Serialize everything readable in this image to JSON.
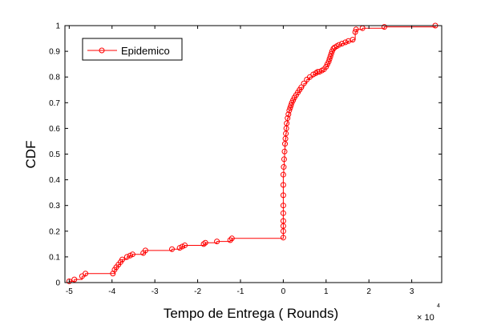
{
  "chart_data": {
    "type": "line",
    "title": "",
    "xlabel": "Tempo de Entrega ( Rounds)",
    "ylabel": "CDF",
    "x_exponent_base": "× 10",
    "x_exponent_power": "4",
    "xlim": [
      -5.1,
      3.7
    ],
    "ylim": [
      0,
      1
    ],
    "x_ticks": [
      "-5",
      "-4",
      "-3",
      "-2",
      "-1",
      "0",
      "1",
      "2",
      "3"
    ],
    "y_ticks": [
      "0",
      "0.1",
      "0.2",
      "0.3",
      "0.4",
      "0.5",
      "0.6",
      "0.7",
      "0.8",
      "0.9",
      "1"
    ],
    "grid": false,
    "legend_position": "top-left",
    "series": [
      {
        "name": "Epidemico",
        "color": "#ff0000",
        "marker": "circle",
        "x": [
          -5.0,
          -4.88,
          -4.7,
          -4.62,
          -3.98,
          -3.94,
          -3.9,
          -3.85,
          -3.8,
          -3.76,
          -3.65,
          -3.58,
          -3.52,
          -3.27,
          -3.22,
          -2.6,
          -2.42,
          -2.36,
          -2.3,
          -1.86,
          -1.82,
          -1.55,
          -1.24,
          -1.2,
          0.0,
          0.0,
          0.0,
          0.0,
          0.0,
          0.0,
          0.0,
          0.0,
          0.0,
          0.01,
          0.02,
          0.03,
          0.04,
          0.05,
          0.06,
          0.07,
          0.08,
          0.1,
          0.12,
          0.14,
          0.16,
          0.18,
          0.2,
          0.23,
          0.26,
          0.3,
          0.34,
          0.38,
          0.42,
          0.48,
          0.55,
          0.62,
          0.7,
          0.76,
          0.8,
          0.84,
          0.9,
          0.95,
          1.0,
          1.03,
          1.06,
          1.08,
          1.1,
          1.12,
          1.14,
          1.17,
          1.2,
          1.25,
          1.3,
          1.37,
          1.45,
          1.52,
          1.62,
          1.68,
          1.7,
          1.85,
          2.36,
          3.55
        ],
        "y": [
          0.005,
          0.012,
          0.025,
          0.035,
          0.035,
          0.05,
          0.06,
          0.07,
          0.08,
          0.09,
          0.1,
          0.105,
          0.11,
          0.115,
          0.125,
          0.13,
          0.135,
          0.14,
          0.145,
          0.15,
          0.155,
          0.16,
          0.165,
          0.172,
          0.175,
          0.2,
          0.22,
          0.24,
          0.27,
          0.3,
          0.34,
          0.38,
          0.42,
          0.45,
          0.48,
          0.51,
          0.54,
          0.56,
          0.58,
          0.6,
          0.62,
          0.64,
          0.655,
          0.67,
          0.68,
          0.69,
          0.7,
          0.71,
          0.72,
          0.73,
          0.74,
          0.75,
          0.76,
          0.775,
          0.79,
          0.8,
          0.81,
          0.815,
          0.82,
          0.82,
          0.825,
          0.83,
          0.84,
          0.85,
          0.86,
          0.87,
          0.88,
          0.89,
          0.9,
          0.91,
          0.915,
          0.92,
          0.925,
          0.93,
          0.935,
          0.94,
          0.945,
          0.975,
          0.985,
          0.99,
          0.995,
          1.0
        ]
      }
    ]
  }
}
